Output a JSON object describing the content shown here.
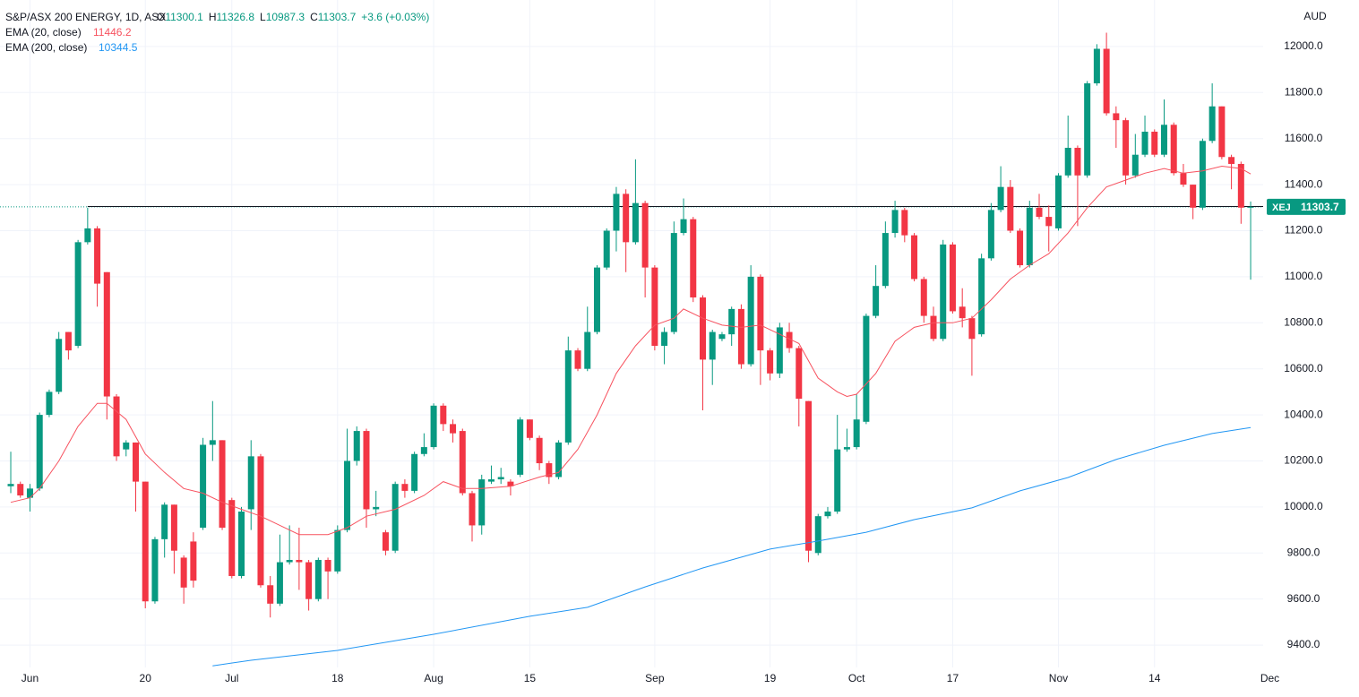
{
  "chart_data": {
    "type": "candlestick",
    "title": "S&P/ASX 200 ENERGY, 1D, ASX",
    "ohlc_labels": [
      "O",
      "H",
      "L",
      "C"
    ],
    "change": "+3.6 (+0.03%)",
    "currency": "AUD",
    "symbol": "XEJ",
    "up_color": "#089981",
    "down_color": "#f23645",
    "open": [
      10090,
      10100,
      10040,
      10080,
      10400,
      10500,
      10760,
      10700,
      11150,
      11210,
      11020,
      10480,
      10250,
      10280,
      10110,
      9590,
      9860,
      10010,
      9780,
      9850,
      9910,
      10270,
      10290,
      10030,
      9700,
      9990,
      10220,
      9660,
      9580,
      9760,
      9770,
      9760,
      9600,
      9770,
      9720,
      9900,
      10200,
      10330,
      9990,
      9890,
      9810,
      10100,
      10070,
      10230,
      10260,
      10440,
      10360,
      10330,
      10060,
      9920,
      10110,
      10120,
      10110,
      10140,
      10380,
      10300,
      10190,
      10130,
      10280,
      10680,
      10600,
      10760,
      11040,
      11200,
      11360,
      11150,
      11320,
      11040,
      10700,
      10760,
      11190,
      11250,
      10910,
      10640,
      10730,
      10750,
      10860,
      10620,
      11000,
      10680,
      10580,
      10760,
      10690,
      10460,
      9800,
      9960,
      9980,
      10250,
      10260,
      10370,
      10830,
      10960,
      11190,
      11290,
      11180,
      10990,
      10830,
      10730,
      11140,
      10870,
      10820,
      10750,
      11080,
      11290,
      11390,
      11200,
      11050,
      11300,
      11260,
      11210,
      11440,
      11560,
      11440,
      11840,
      11990,
      11710,
      11680,
      11440,
      11530,
      11630,
      11530,
      11660,
      11450,
      11400,
      11300,
      11590,
      11740,
      11520,
      11490,
      11300.1
    ],
    "high": [
      10240,
      10110,
      10100,
      10410,
      10510,
      10760,
      10760,
      11160,
      11300,
      11220,
      11020,
      10490,
      10290,
      10280,
      10110,
      9870,
      10020,
      10010,
      9790,
      9890,
      10300,
      10460,
      10290,
      10040,
      10000,
      10290,
      10230,
      9700,
      9880,
      9920,
      9910,
      9770,
      9780,
      9780,
      9920,
      10340,
      10350,
      10340,
      10070,
      9900,
      10110,
      10120,
      10240,
      10320,
      10450,
      10450,
      10380,
      10340,
      10070,
      10140,
      10180,
      10170,
      10120,
      10390,
      10380,
      10310,
      10200,
      10290,
      10740,
      10690,
      10870,
      11050,
      11210,
      11390,
      11380,
      11510,
      11330,
      11050,
      10780,
      11240,
      11340,
      11260,
      10920,
      10770,
      10760,
      10870,
      10880,
      11050,
      11010,
      10690,
      10800,
      10800,
      10700,
      10460,
      9970,
      10000,
      10400,
      10340,
      10490,
      10840,
      11050,
      11240,
      11330,
      11300,
      11190,
      11000,
      10870,
      11160,
      11150,
      10950,
      10830,
      11100,
      11320,
      11480,
      11420,
      11210,
      11330,
      11360,
      11310,
      11450,
      11700,
      11570,
      11850,
      12010,
      12060,
      11740,
      11690,
      11620,
      11700,
      11640,
      11770,
      11670,
      11490,
      11400,
      11600,
      11840,
      11740,
      11530,
      11500,
      11326.8
    ],
    "low": [
      10060,
      10040,
      9980,
      10070,
      10390,
      10490,
      10640,
      10690,
      11140,
      10870,
      10380,
      10200,
      10220,
      9980,
      9560,
      9580,
      9780,
      9710,
      9580,
      9650,
      9900,
      10200,
      9900,
      9690,
      9690,
      9900,
      9650,
      9520,
      9570,
      9750,
      9640,
      9550,
      9590,
      9600,
      9710,
      9890,
      10180,
      9910,
      9960,
      9790,
      9800,
      10040,
      10060,
      10220,
      10250,
      10330,
      10280,
      10050,
      9850,
      9880,
      10100,
      10100,
      10050,
      10130,
      10290,
      10160,
      10100,
      10120,
      10270,
      10590,
      10590,
      10750,
      11030,
      11110,
      11020,
      11140,
      10910,
      10680,
      10620,
      10750,
      11180,
      10890,
      10420,
      10530,
      10720,
      10700,
      10600,
      10610,
      10530,
      10550,
      10560,
      10670,
      10350,
      9760,
      9790,
      9950,
      9970,
      10240,
      10250,
      10360,
      10820,
      10950,
      11170,
      11150,
      10980,
      10800,
      10720,
      10720,
      10840,
      10780,
      10570,
      10740,
      11070,
      11280,
      11190,
      11040,
      11040,
      11250,
      11110,
      11200,
      11430,
      11220,
      11430,
      11830,
      11700,
      11560,
      11400,
      11430,
      11520,
      11520,
      11520,
      11440,
      11390,
      11250,
      11290,
      11580,
      11510,
      11380,
      11230,
      10987.3
    ],
    "close": [
      10100,
      10050,
      10080,
      10400,
      10500,
      10730,
      10680,
      11150,
      11210,
      10970,
      10480,
      10220,
      10280,
      10110,
      9590,
      9860,
      10010,
      9810,
      9650,
      9680,
      10270,
      10290,
      9910,
      9700,
      9980,
      10220,
      9660,
      9580,
      9760,
      9770,
      9760,
      9600,
      9770,
      9720,
      9900,
      10200,
      10330,
      9990,
      10000,
      9810,
      10100,
      10070,
      10230,
      10260,
      10440,
      10360,
      10320,
      10060,
      9920,
      10120,
      10120,
      10130,
      10090,
      10380,
      10300,
      10190,
      10130,
      10280,
      10680,
      10600,
      10760,
      11040,
      11200,
      11360,
      11150,
      11320,
      11040,
      10700,
      10760,
      11190,
      11250,
      10910,
      10640,
      10760,
      10750,
      10860,
      10620,
      11000,
      10680,
      10580,
      10780,
      10690,
      10470,
      9810,
      9960,
      9980,
      10250,
      10260,
      10380,
      10830,
      10960,
      11190,
      11290,
      11180,
      10990,
      10830,
      10730,
      11140,
      10850,
      10820,
      10730,
      11080,
      11290,
      11390,
      11200,
      11050,
      11300,
      11260,
      11220,
      11440,
      11560,
      11440,
      11840,
      11990,
      11710,
      11680,
      11440,
      11530,
      11630,
      11530,
      11660,
      11450,
      11400,
      11300,
      11590,
      11740,
      11520,
      11490,
      11300,
      11303.7
    ],
    "series": [
      {
        "name": "EMA (20, close)",
        "color": "#f7525f",
        "x": [
          0,
          2,
          3,
          5,
          7,
          9,
          10,
          12,
          14,
          16,
          18,
          20,
          22,
          24,
          26,
          28,
          30,
          33,
          35,
          37,
          40,
          43,
          45,
          47,
          49,
          52,
          55,
          57,
          59,
          61,
          63,
          65,
          67,
          69,
          70,
          72,
          74,
          76,
          78,
          80,
          82,
          84,
          86,
          87,
          88,
          90,
          92,
          94,
          96,
          98,
          100,
          102,
          104,
          106,
          108,
          110,
          112,
          114,
          116,
          118,
          120,
          122,
          124,
          126,
          128,
          129
        ],
        "values": [
          10020,
          10040,
          10080,
          10200,
          10350,
          10450,
          10450,
          10380,
          10230,
          10150,
          10080,
          10060,
          10020,
          9990,
          9960,
          9920,
          9880,
          9880,
          9910,
          9960,
          9990,
          10050,
          10110,
          10080,
          10080,
          10090,
          10130,
          10150,
          10250,
          10400,
          10580,
          10700,
          10790,
          10820,
          10860,
          10820,
          10790,
          10780,
          10790,
          10750,
          10710,
          10560,
          10500,
          10480,
          10490,
          10580,
          10720,
          10780,
          10800,
          10800,
          10820,
          10900,
          10990,
          11050,
          11100,
          11190,
          11300,
          11390,
          11420,
          11450,
          11470,
          11450,
          11460,
          11480,
          11470,
          11446.2
        ]
      },
      {
        "name": "EMA (200, close)",
        "color": "#2196f3",
        "x": [
          21,
          25,
          34,
          44,
          54,
          60,
          66,
          72,
          79,
          84,
          89,
          94,
          100,
          105,
          110,
          115,
          120,
          125,
          129
        ],
        "values": [
          9310,
          9334,
          9377,
          9447,
          9525,
          9564,
          9653,
          9735,
          9817,
          9852,
          9890,
          9945,
          9996,
          10070,
          10128,
          10206,
          10268,
          10319,
          10344.5
        ]
      }
    ],
    "horizontal_ray": {
      "start": 8,
      "value": 11305
    },
    "xlim": [
      -1.12,
      130.3
    ],
    "xticks": [
      {
        "value": 2,
        "label": "Jun"
      },
      {
        "value": 14,
        "label": "20"
      },
      {
        "value": 23,
        "label": "Jul"
      },
      {
        "value": 34,
        "label": "18"
      },
      {
        "value": 44,
        "label": "Aug"
      },
      {
        "value": 54,
        "label": "15"
      },
      {
        "value": 67,
        "label": "Sep"
      },
      {
        "value": 79,
        "label": "19"
      },
      {
        "value": 88,
        "label": "Oct"
      },
      {
        "value": 98,
        "label": "17"
      },
      {
        "value": 109,
        "label": "Nov"
      },
      {
        "value": 119,
        "label": "14"
      },
      {
        "value": 131,
        "label": "Dec"
      }
    ],
    "ylim": [
      9303,
      12202
    ],
    "yticks": [
      {
        "value": 9400,
        "label": "9400.0"
      },
      {
        "value": 9600,
        "label": "9600.0"
      },
      {
        "value": 9800,
        "label": "9800.0"
      },
      {
        "value": 10000,
        "label": "10000.0"
      },
      {
        "value": 10200,
        "label": "10200.0"
      },
      {
        "value": 10400,
        "label": "10400.0"
      },
      {
        "value": 10600,
        "label": "10600.0"
      },
      {
        "value": 10800,
        "label": "10800.0"
      },
      {
        "value": 11000,
        "label": "11000.0"
      },
      {
        "value": 11200,
        "label": "11200.0"
      },
      {
        "value": 11400,
        "label": "11400.0"
      },
      {
        "value": 11600,
        "label": "11600.0"
      },
      {
        "value": 11800,
        "label": "11800.0"
      },
      {
        "value": 12000,
        "label": "12000.0"
      }
    ],
    "grid": true
  }
}
